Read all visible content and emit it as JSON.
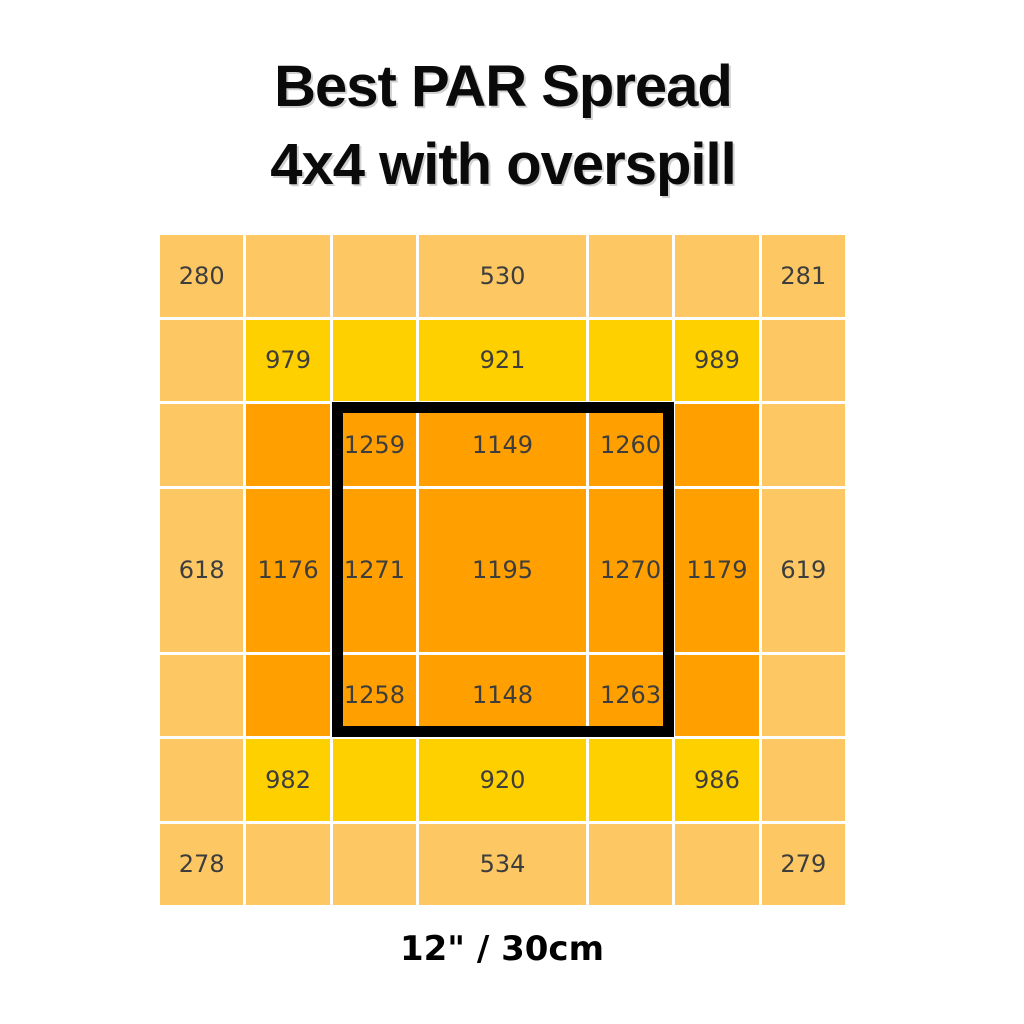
{
  "title": {
    "line1": "Best PAR Spread",
    "line2": "4x4 with overspill"
  },
  "footer": {
    "label": "12\" / 30cm"
  },
  "chart_data": {
    "type": "heatmap",
    "title": "Best PAR Spread 4x4 with overspill",
    "footer_label": "12\" / 30cm",
    "rows": 7,
    "cols": 7,
    "values": [
      [
        280,
        null,
        null,
        530,
        null,
        null,
        281
      ],
      [
        null,
        979,
        null,
        921,
        null,
        989,
        null
      ],
      [
        null,
        null,
        1259,
        1149,
        1260,
        null,
        null
      ],
      [
        618,
        1176,
        1271,
        1195,
        1270,
        1179,
        619
      ],
      [
        null,
        null,
        1258,
        1148,
        1263,
        null,
        null
      ],
      [
        null,
        982,
        null,
        920,
        null,
        986,
        null
      ],
      [
        278,
        null,
        null,
        534,
        null,
        null,
        279
      ]
    ],
    "cell_colors": [
      [
        "light",
        "light",
        "light",
        "light",
        "light",
        "light",
        "light"
      ],
      [
        "light",
        "yellow",
        "yellow",
        "yellow",
        "yellow",
        "yellow",
        "light"
      ],
      [
        "light",
        "orange",
        "orange",
        "orange",
        "orange",
        "orange",
        "light"
      ],
      [
        "light",
        "orange",
        "orange",
        "orange",
        "orange",
        "orange",
        "light"
      ],
      [
        "light",
        "orange",
        "orange",
        "orange",
        "orange",
        "orange",
        "light"
      ],
      [
        "light",
        "yellow",
        "yellow",
        "yellow",
        "yellow",
        "yellow",
        "light"
      ],
      [
        "light",
        "light",
        "light",
        "light",
        "light",
        "light",
        "light"
      ]
    ],
    "palette": {
      "light": "#FDC864",
      "yellow": "#FFD000",
      "orange": "#FFA000",
      "highlight_outline": "#000000",
      "gridline": "#FFFFFF",
      "value_text": "#3d3d3d"
    },
    "highlight_box": {
      "description": "thick black square outlining the inner 3x3 cells",
      "row_range": [
        3,
        5
      ],
      "col_range": [
        3,
        5
      ]
    },
    "layout_hints": {
      "center_row_and_column_double_size": true,
      "gridlines": "white, between cells only",
      "legend": "none",
      "axes": "none"
    }
  },
  "cells": [
    {
      "value": "280",
      "cls": "cell c-light"
    },
    {
      "value": "",
      "cls": "cell c-light"
    },
    {
      "value": "",
      "cls": "cell c-light"
    },
    {
      "value": "530",
      "cls": "cell c-light"
    },
    {
      "value": "",
      "cls": "cell c-light"
    },
    {
      "value": "",
      "cls": "cell c-light"
    },
    {
      "value": "281",
      "cls": "cell c-light"
    },
    {
      "value": "",
      "cls": "cell c-light"
    },
    {
      "value": "979",
      "cls": "cell c-yellow"
    },
    {
      "value": "",
      "cls": "cell c-yellow"
    },
    {
      "value": "921",
      "cls": "cell c-yellow"
    },
    {
      "value": "",
      "cls": "cell c-yellow"
    },
    {
      "value": "989",
      "cls": "cell c-yellow"
    },
    {
      "value": "",
      "cls": "cell c-light"
    },
    {
      "value": "",
      "cls": "cell c-light"
    },
    {
      "value": "",
      "cls": "cell c-orange"
    },
    {
      "value": "1259",
      "cls": "cell c-orange"
    },
    {
      "value": "1149",
      "cls": "cell c-orange"
    },
    {
      "value": "1260",
      "cls": "cell c-orange"
    },
    {
      "value": "",
      "cls": "cell c-orange"
    },
    {
      "value": "",
      "cls": "cell c-light"
    },
    {
      "value": "618",
      "cls": "cell c-light"
    },
    {
      "value": "1176",
      "cls": "cell c-orange"
    },
    {
      "value": "1271",
      "cls": "cell c-orange"
    },
    {
      "value": "1195",
      "cls": "cell c-orange"
    },
    {
      "value": "1270",
      "cls": "cell c-orange"
    },
    {
      "value": "1179",
      "cls": "cell c-orange"
    },
    {
      "value": "619",
      "cls": "cell c-light"
    },
    {
      "value": "",
      "cls": "cell c-light"
    },
    {
      "value": "",
      "cls": "cell c-orange"
    },
    {
      "value": "1258",
      "cls": "cell c-orange"
    },
    {
      "value": "1148",
      "cls": "cell c-orange"
    },
    {
      "value": "1263",
      "cls": "cell c-orange"
    },
    {
      "value": "",
      "cls": "cell c-orange"
    },
    {
      "value": "",
      "cls": "cell c-light"
    },
    {
      "value": "",
      "cls": "cell c-light"
    },
    {
      "value": "982",
      "cls": "cell c-yellow"
    },
    {
      "value": "",
      "cls": "cell c-yellow"
    },
    {
      "value": "920",
      "cls": "cell c-yellow"
    },
    {
      "value": "",
      "cls": "cell c-yellow"
    },
    {
      "value": "986",
      "cls": "cell c-yellow"
    },
    {
      "value": "",
      "cls": "cell c-light"
    },
    {
      "value": "278",
      "cls": "cell c-light"
    },
    {
      "value": "",
      "cls": "cell c-light"
    },
    {
      "value": "",
      "cls": "cell c-light"
    },
    {
      "value": "534",
      "cls": "cell c-light"
    },
    {
      "value": "",
      "cls": "cell c-light"
    },
    {
      "value": "",
      "cls": "cell c-light"
    },
    {
      "value": "279",
      "cls": "cell c-light"
    }
  ]
}
